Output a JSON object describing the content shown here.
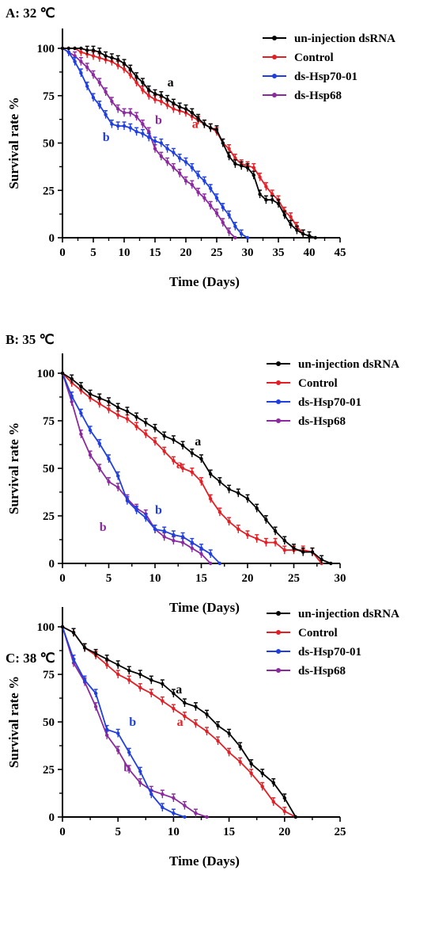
{
  "chart_data": [
    {
      "type": "line",
      "title": "A: 32 ℃",
      "xlabel": "Time (Days)",
      "ylabel": "Survival rate %",
      "xlim": [
        0,
        45
      ],
      "ylim": [
        0,
        100
      ],
      "xticks": [
        0,
        5,
        10,
        15,
        20,
        25,
        30,
        35,
        40,
        45
      ],
      "yticks": [
        0,
        25,
        50,
        75,
        100
      ],
      "legend_position": "top-right",
      "series": [
        {
          "name": "un-injection dsRNA",
          "color": "#000000",
          "x": [
            0,
            1,
            2,
            3,
            4,
            5,
            6,
            7,
            8,
            9,
            10,
            11,
            12,
            13,
            14,
            15,
            16,
            17,
            18,
            19,
            20,
            21,
            22,
            23,
            24,
            25,
            26,
            27,
            28,
            29,
            30,
            31,
            32,
            33,
            34,
            35,
            36,
            37,
            38,
            39,
            40,
            41
          ],
          "y": [
            100,
            100,
            100,
            100,
            99,
            99,
            98,
            96,
            95,
            94,
            92,
            89,
            85,
            82,
            78,
            76,
            75,
            73,
            71,
            69,
            68,
            66,
            63,
            60,
            58,
            57,
            50,
            43,
            39,
            38,
            37,
            33,
            23,
            20,
            20,
            18,
            12,
            7,
            4,
            2,
            1,
            0
          ]
        },
        {
          "name": "Control",
          "color": "#e31e24",
          "x": [
            0,
            1,
            2,
            3,
            4,
            5,
            6,
            7,
            8,
            9,
            10,
            11,
            12,
            13,
            14,
            15,
            16,
            17,
            18,
            19,
            20,
            21,
            22,
            23,
            24,
            25,
            26,
            27,
            28,
            29,
            30,
            31,
            32,
            33,
            34,
            35,
            36,
            37,
            38,
            39
          ],
          "y": [
            100,
            100,
            100,
            98,
            97,
            96,
            95,
            94,
            93,
            91,
            89,
            86,
            82,
            78,
            75,
            73,
            72,
            70,
            68,
            67,
            66,
            64,
            62,
            60,
            58,
            56,
            50,
            47,
            42,
            39,
            38,
            37,
            32,
            27,
            23,
            20,
            14,
            11,
            6,
            2
          ]
        },
        {
          "name": "ds-Hsp70-01",
          "color": "#1f3fe0",
          "x": [
            0,
            1,
            2,
            3,
            4,
            5,
            6,
            7,
            8,
            9,
            10,
            11,
            12,
            13,
            14,
            15,
            16,
            17,
            18,
            19,
            20,
            21,
            22,
            23,
            24,
            25,
            26,
            27,
            28,
            29,
            30
          ],
          "y": [
            100,
            98,
            93,
            87,
            80,
            74,
            70,
            65,
            60,
            59,
            59,
            58,
            56,
            55,
            53,
            51,
            50,
            47,
            45,
            42,
            40,
            37,
            33,
            30,
            26,
            21,
            16,
            12,
            6,
            2,
            0
          ]
        },
        {
          "name": "ds-Hsp68",
          "color": "#8b2a9e",
          "x": [
            0,
            1,
            2,
            3,
            4,
            5,
            6,
            7,
            8,
            9,
            10,
            11,
            12,
            13,
            14,
            15,
            16,
            17,
            18,
            19,
            20,
            21,
            22,
            23,
            24,
            25,
            26,
            27,
            28
          ],
          "y": [
            100,
            98,
            96,
            93,
            90,
            86,
            82,
            77,
            72,
            68,
            66,
            66,
            64,
            60,
            56,
            47,
            43,
            40,
            37,
            34,
            30,
            28,
            24,
            21,
            17,
            13,
            8,
            3,
            0
          ]
        }
      ],
      "annotations": [
        {
          "text": "a",
          "color": "#000000",
          "x": 17,
          "y": 80
        },
        {
          "text": "a",
          "color": "#e31e24",
          "x": 21,
          "y": 58
        },
        {
          "text": "b",
          "color": "#8b2a9e",
          "x": 15,
          "y": 60
        },
        {
          "text": "b",
          "color": "#1f3fe0",
          "x": 6.5,
          "y": 51
        }
      ]
    },
    {
      "type": "line",
      "title": "B: 35 ℃",
      "xlabel": "Time (Days)",
      "ylabel": "Survival rate %",
      "xlim": [
        0,
        30
      ],
      "ylim": [
        0,
        100
      ],
      "xticks": [
        0,
        5,
        10,
        15,
        20,
        25,
        30
      ],
      "yticks": [
        0,
        25,
        50,
        75,
        100
      ],
      "legend_position": "top-right",
      "series": [
        {
          "name": "un-injection dsRNA",
          "color": "#000000",
          "x": [
            0,
            1,
            2,
            3,
            4,
            5,
            6,
            7,
            8,
            9,
            10,
            11,
            12,
            13,
            14,
            15,
            16,
            17,
            18,
            19,
            20,
            21,
            22,
            23,
            24,
            25,
            26,
            27,
            28,
            29
          ],
          "y": [
            100,
            97,
            93,
            89,
            87,
            85,
            82,
            80,
            77,
            74,
            71,
            67,
            65,
            62,
            58,
            55,
            47,
            43,
            39,
            37,
            34,
            29,
            23,
            17,
            12,
            8,
            6,
            6,
            2,
            0
          ]
        },
        {
          "name": "Control",
          "color": "#e31e24",
          "x": [
            0,
            1,
            2,
            3,
            4,
            5,
            6,
            7,
            8,
            9,
            10,
            11,
            12,
            13,
            14,
            15,
            16,
            17,
            18,
            19,
            20,
            21,
            22,
            23,
            24,
            25,
            26,
            27,
            28
          ],
          "y": [
            100,
            95,
            91,
            87,
            84,
            81,
            78,
            76,
            72,
            68,
            64,
            59,
            54,
            50,
            48,
            43,
            34,
            27,
            22,
            18,
            15,
            13,
            11,
            11,
            7,
            7,
            7,
            6,
            0
          ]
        },
        {
          "name": "ds-Hsp70-01",
          "color": "#1f3fe0",
          "x": [
            0,
            1,
            2,
            3,
            4,
            5,
            6,
            7,
            8,
            9,
            10,
            11,
            12,
            13,
            14,
            15,
            16,
            17
          ],
          "y": [
            100,
            88,
            79,
            70,
            63,
            55,
            46,
            33,
            28,
            24,
            18,
            17,
            15,
            14,
            11,
            8,
            5,
            0
          ]
        },
        {
          "name": "ds-Hsp68",
          "color": "#8b2a9e",
          "x": [
            0,
            1,
            2,
            3,
            4,
            5,
            6,
            7,
            8,
            9,
            10,
            11,
            12,
            13,
            14,
            15,
            16
          ],
          "y": [
            100,
            85,
            68,
            57,
            50,
            43,
            40,
            34,
            29,
            26,
            18,
            14,
            12,
            11,
            8,
            5,
            0
          ]
        }
      ],
      "annotations": [
        {
          "text": "a",
          "color": "#000000",
          "x": 14.3,
          "y": 62
        },
        {
          "text": "a",
          "color": "#e31e24",
          "x": 12.3,
          "y": 50
        },
        {
          "text": "b",
          "color": "#1f3fe0",
          "x": 10,
          "y": 26
        },
        {
          "text": "b",
          "color": "#8b2a9e",
          "x": 4,
          "y": 17
        }
      ]
    },
    {
      "type": "line",
      "title": "C: 38 ℃",
      "xlabel": "Time (Days)",
      "ylabel": "Survival rate %",
      "xlim": [
        0,
        25
      ],
      "ylim": [
        0,
        100
      ],
      "xticks": [
        0,
        5,
        10,
        15,
        20,
        25
      ],
      "yticks": [
        0,
        25,
        50,
        75,
        100
      ],
      "legend_position": "top-right",
      "series": [
        {
          "name": "un-injection dsRNA",
          "color": "#000000",
          "x": [
            0,
            1,
            2,
            3,
            4,
            5,
            6,
            7,
            8,
            9,
            10,
            11,
            12,
            13,
            14,
            15,
            16,
            17,
            18,
            19,
            20,
            21
          ],
          "y": [
            100,
            97,
            89,
            86,
            83,
            80,
            77,
            75,
            72,
            70,
            65,
            60,
            58,
            54,
            48,
            44,
            37,
            28,
            23,
            18,
            10,
            0
          ]
        },
        {
          "name": "Control",
          "color": "#e31e24",
          "x": [
            0,
            1,
            2,
            3,
            4,
            5,
            6,
            7,
            8,
            9,
            10,
            11,
            12,
            13,
            14,
            15,
            16,
            17,
            18,
            19,
            20,
            21
          ],
          "y": [
            100,
            97,
            89,
            85,
            80,
            75,
            72,
            68,
            65,
            61,
            57,
            53,
            49,
            45,
            40,
            34,
            29,
            23,
            16,
            8,
            3,
            0
          ]
        },
        {
          "name": "ds-Hsp70-01",
          "color": "#1f3fe0",
          "x": [
            0,
            1,
            2,
            3,
            4,
            5,
            6,
            7,
            8,
            9,
            10,
            11
          ],
          "y": [
            100,
            83,
            72,
            65,
            46,
            44,
            34,
            24,
            12,
            5,
            2,
            0
          ]
        },
        {
          "name": "ds-Hsp68",
          "color": "#8b2a9e",
          "x": [
            0,
            1,
            2,
            3,
            4,
            5,
            6,
            7,
            8,
            9,
            10,
            11,
            12,
            13
          ],
          "y": [
            100,
            81,
            71,
            58,
            43,
            35,
            25,
            18,
            14,
            12,
            10,
            6,
            2,
            0
          ]
        }
      ],
      "annotations": [
        {
          "text": "a",
          "color": "#000000",
          "x": 10.2,
          "y": 65
        },
        {
          "text": "a",
          "color": "#e31e24",
          "x": 10.3,
          "y": 48
        },
        {
          "text": "b",
          "color": "#1f3fe0",
          "x": 6,
          "y": 48
        },
        {
          "text": "b",
          "color": "#8b2a9e",
          "x": 5.5,
          "y": 24
        }
      ]
    }
  ]
}
